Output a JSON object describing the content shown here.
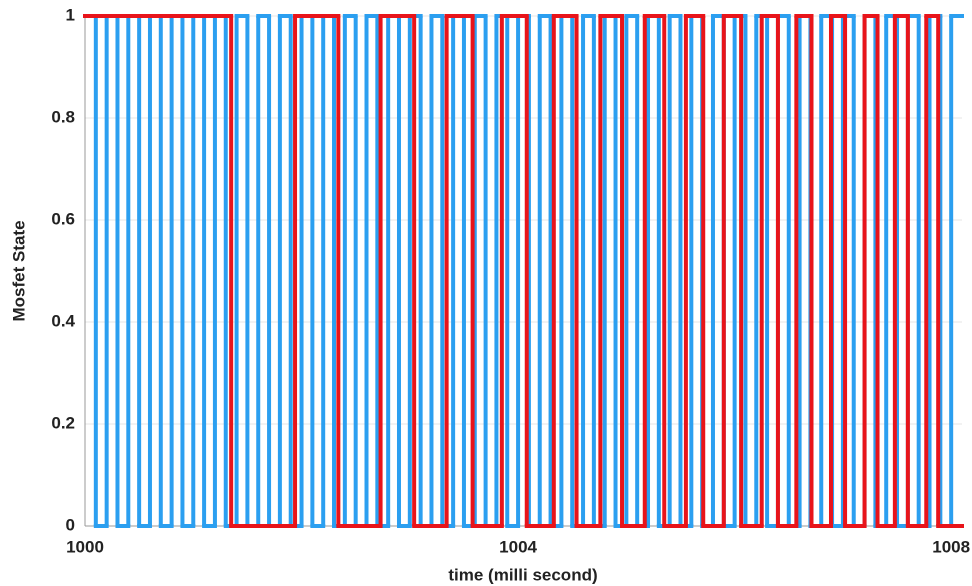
{
  "chart_data": {
    "type": "step",
    "xlabel": "time (milli second)",
    "ylabel": "Mosfet State",
    "xlim": [
      1000,
      1008.1
    ],
    "xticks": [
      1000,
      1004,
      1008
    ],
    "ylim": [
      0,
      1
    ],
    "yticks": [
      0,
      0.2,
      0.4,
      0.6,
      0.8,
      1
    ],
    "grid": true,
    "series": [
      {
        "color": "#2b9ff0",
        "x": [
          1000,
          1000.1,
          1000.2,
          1000.3,
          1000.4,
          1000.5,
          1000.6,
          1000.7,
          1000.8,
          1000.9,
          1001,
          1001.1,
          1001.2,
          1001.3,
          1001.4,
          1001.5,
          1001.6,
          1001.7,
          1001.8,
          1001.9,
          1002,
          1002.1,
          1002.2,
          1002.3,
          1002.4,
          1002.5,
          1002.6,
          1002.7,
          1002.8,
          1002.9,
          1003,
          1003.1,
          1003.2,
          1003.3,
          1003.4,
          1003.5,
          1003.6,
          1003.7,
          1003.8,
          1003.9,
          1004,
          1004.1,
          1004.2,
          1004.3,
          1004.4,
          1004.5,
          1004.6,
          1004.7,
          1004.8,
          1004.9,
          1005,
          1005.1,
          1005.2,
          1005.3,
          1005.4,
          1005.5,
          1005.6,
          1005.7,
          1005.8,
          1005.9,
          1006,
          1006.1,
          1006.2,
          1006.3,
          1006.4,
          1006.5,
          1006.6,
          1006.7,
          1006.8,
          1006.9,
          1007,
          1007.1,
          1007.2,
          1007.3,
          1007.4,
          1007.5,
          1007.6,
          1007.7,
          1007.8,
          1007.9,
          1008
        ],
        "values": [
          1,
          0,
          1,
          0,
          1,
          0,
          1,
          0,
          1,
          0,
          1,
          0,
          1,
          0,
          1,
          0,
          1,
          0,
          1,
          0,
          1,
          0,
          1,
          0,
          1,
          0,
          1,
          0,
          1,
          0,
          1,
          0,
          1,
          0,
          1,
          0,
          1,
          0,
          1,
          0,
          1,
          0,
          1,
          0,
          1,
          0,
          1,
          0,
          1,
          0,
          1,
          0,
          1,
          0,
          1,
          0,
          1,
          0,
          1,
          0,
          1,
          0,
          1,
          0,
          1,
          0,
          1,
          0,
          1,
          0,
          1,
          0,
          1,
          0,
          1,
          0,
          1,
          0,
          1,
          0,
          1
        ]
      },
      {
        "color": "#e8141a",
        "x": [
          1000,
          1001.35,
          1001.94,
          1002.34,
          1002.73,
          1003.04,
          1003.34,
          1003.58,
          1003.85,
          1004.08,
          1004.33,
          1004.54,
          1004.76,
          1004.96,
          1005.17,
          1005.35,
          1005.55,
          1005.71,
          1005.9,
          1006.06,
          1006.25,
          1006.4,
          1006.57,
          1006.71,
          1006.89,
          1007.02,
          1007.2,
          1007.32,
          1007.48,
          1007.6,
          1007.77,
          1007.88,
          1008.05
        ],
        "values": [
          1,
          0,
          1,
          0,
          1,
          0,
          1,
          0,
          1,
          0,
          1,
          0,
          1,
          0,
          1,
          0,
          1,
          0,
          1,
          0,
          1,
          0,
          1,
          0,
          1,
          0,
          1,
          0,
          1,
          0,
          1,
          0,
          0
        ]
      }
    ]
  }
}
